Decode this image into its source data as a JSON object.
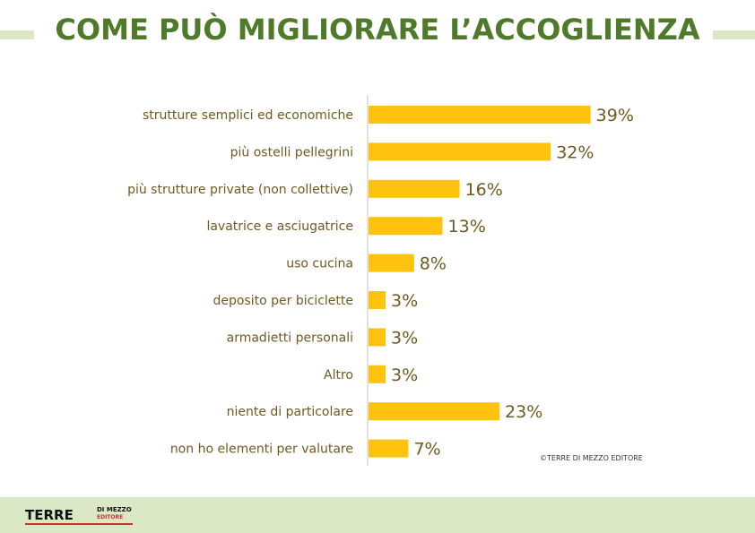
{
  "header": {
    "title": "COME PUÒ MIGLIORARE L’ACCOGLIENZA"
  },
  "credit": "©TERRE DI MEZZO EDITORE",
  "logo": {
    "main": "TERRE",
    "sub1": "DI MEZZO",
    "sub2": "EDITORE"
  },
  "colors": {
    "bar": "#ffc20e",
    "title": "#4e7a2a",
    "band": "#dbe8c6",
    "label": "#6f5a1f",
    "axis": "#d9d9d9"
  },
  "chart_data": {
    "type": "bar",
    "orientation": "horizontal",
    "categories": [
      "strutture semplici ed economiche",
      "più ostelli pellegrini",
      "più strutture private (non collettive)",
      "lavatrice e asciugatrice",
      "uso cucina",
      "deposito per biciclette",
      "armadietti personali",
      "Altro",
      "niente di particolare",
      "non ho elementi per valutare"
    ],
    "values": [
      39,
      32,
      16,
      13,
      8,
      3,
      3,
      3,
      23,
      7
    ],
    "value_labels": [
      "39%",
      "32%",
      "16%",
      "13%",
      "8%",
      "3%",
      "3%",
      "3%",
      "23%",
      "7%"
    ],
    "unit": "%",
    "xlim": [
      0,
      100
    ],
    "grid": false,
    "legend": "none"
  }
}
